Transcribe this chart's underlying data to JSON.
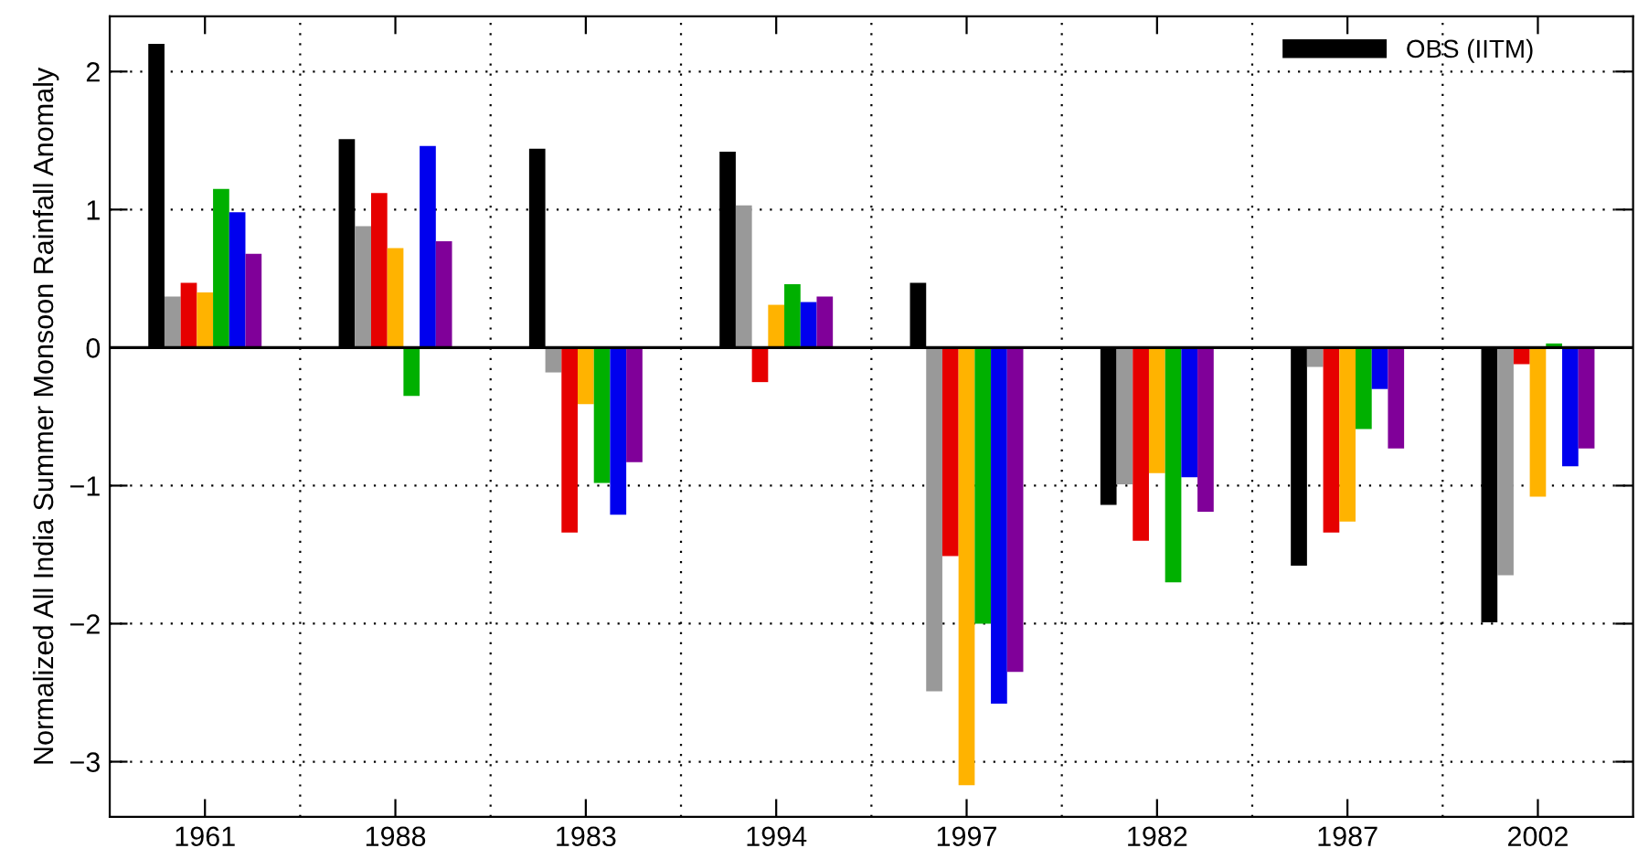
{
  "chart_data": {
    "type": "bar",
    "ylabel": "Normalized All India Summer Monsoon Rainfall Anomaly",
    "categories": [
      "1961",
      "1988",
      "1983",
      "1994",
      "1997",
      "1982",
      "1987",
      "2002"
    ],
    "series": [
      {
        "name": "OBS (IITM)",
        "color": "#000000",
        "values": [
          2.2,
          1.51,
          1.44,
          1.42,
          0.47,
          -1.14,
          -1.58,
          -1.99
        ]
      },
      {
        "color": "#999999",
        "values": [
          0.37,
          0.88,
          -0.18,
          1.03,
          -2.49,
          -0.99,
          -0.14,
          -1.65
        ]
      },
      {
        "color": "#e60000",
        "values": [
          0.47,
          1.12,
          -1.34,
          -0.25,
          -1.51,
          -1.4,
          -1.34,
          -0.12
        ]
      },
      {
        "color": "#ffb300",
        "values": [
          0.4,
          0.72,
          -0.41,
          0.31,
          -3.17,
          -0.91,
          -1.26,
          -1.08
        ]
      },
      {
        "color": "#00b000",
        "values": [
          1.15,
          -0.35,
          -0.98,
          0.46,
          -2.0,
          -1.7,
          -0.59,
          0.03
        ]
      },
      {
        "color": "#0000ee",
        "values": [
          0.98,
          1.46,
          -1.21,
          0.33,
          -2.58,
          -0.94,
          -0.3,
          -0.86
        ]
      },
      {
        "color": "#800099",
        "values": [
          0.68,
          0.77,
          -0.83,
          0.37,
          -2.35,
          -1.19,
          -0.73,
          -0.73
        ]
      }
    ],
    "ylim": [
      -3.4,
      2.4
    ],
    "yticks": [
      {
        "value": -3,
        "label": "−3"
      },
      {
        "value": -2,
        "label": "−2"
      },
      {
        "value": -1,
        "label": "−1"
      },
      0,
      1,
      2
    ],
    "grid": true,
    "legend": "top right"
  }
}
